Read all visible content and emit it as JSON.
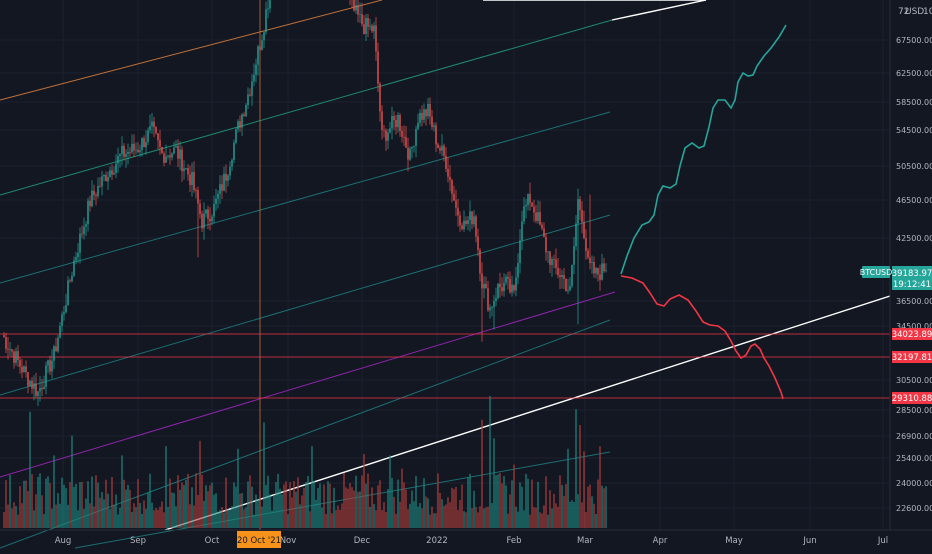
{
  "chart_data": {
    "type": "candlestick",
    "symbol": "BTCUSD",
    "currency": "USD",
    "ylim": [
      21000,
      72000
    ],
    "colors": {
      "background": "#131722",
      "up": "#26a69a",
      "down": "#ef5350",
      "up_volume": "#1f8a80",
      "down_volume": "#b23f3c",
      "price_badge": "#26a69a",
      "level_badge": "#f23645",
      "crosshair_badge": "#f7931a",
      "projection_up": "#26a69a",
      "projection_down": "#f23645",
      "trendline": "#ffffff",
      "channel_outer": "#c2733a",
      "channel_mid": "#1e8a6e",
      "channel_inner": "#1b6e72",
      "channel_purple": "#8e24aa",
      "level_line": "#f23645",
      "axis_text": "#b2b5be"
    },
    "price_axis_ticks": [
      "67500.00",
      "62500.00",
      "58500.00",
      "54500.00",
      "50500.00",
      "46500.00",
      "42500.00",
      "36500.00",
      "34500.00",
      "30500.00",
      "28500.00",
      "26900.00",
      "25400.00",
      "24000.00",
      "22600.00"
    ],
    "time_axis_labels": [
      "Aug",
      "Sep",
      "Oct",
      "Nov",
      "Dec",
      "2022",
      "Feb",
      "Mar",
      "Apr",
      "May",
      "Jun",
      "Jul"
    ],
    "crosshair_date": "20 Oct '21",
    "current_price": "39183.97",
    "countdown": "19:12:41",
    "levels": [
      {
        "label": "34023.89",
        "value": 34023.89
      },
      {
        "label": "32197.81",
        "value": 32197.81
      },
      {
        "label": "29310.88",
        "value": 29310.88
      }
    ],
    "top_labels": {
      "currency": "USD",
      "left_digits": "72",
      "right_digits": "10"
    },
    "series": {
      "anchors": [
        [
          0,
          34000
        ],
        [
          12,
          31000
        ],
        [
          18,
          29700
        ],
        [
          26,
          32500
        ],
        [
          36,
          39500
        ],
        [
          44,
          44000
        ],
        [
          52,
          46000
        ],
        [
          60,
          47500
        ],
        [
          68,
          48000
        ],
        [
          75,
          49300
        ],
        [
          80,
          47500
        ],
        [
          87,
          47800
        ],
        [
          95,
          45500
        ],
        [
          100,
          42500
        ],
        [
          106,
          43500
        ],
        [
          112,
          46000
        ],
        [
          118,
          49500
        ],
        [
          124,
          52500
        ],
        [
          130,
          56500
        ],
        [
          136,
          61500
        ],
        [
          140,
          64800
        ],
        [
          146,
          62000
        ],
        [
          151,
          62000
        ],
        [
          156,
          63300
        ],
        [
          160,
          66000
        ],
        [
          164,
          64200
        ],
        [
          168,
          63500
        ],
        [
          172,
          59800
        ],
        [
          176,
          58200
        ],
        [
          181,
          57100
        ],
        [
          186,
          56800
        ],
        [
          190,
          48800
        ],
        [
          194,
          49500
        ],
        [
          198,
          50200
        ],
        [
          204,
          47300
        ],
        [
          208,
          50300
        ],
        [
          213,
          50700
        ],
        [
          218,
          48200
        ],
        [
          222,
          47000
        ],
        [
          227,
          43500
        ],
        [
          231,
          42200
        ],
        [
          236,
          43000
        ],
        [
          240,
          38000
        ],
        [
          244,
          36000
        ],
        [
          248,
          37500
        ],
        [
          252,
          37800
        ],
        [
          256,
          36900
        ],
        [
          260,
          43000
        ],
        [
          264,
          44200
        ],
        [
          268,
          42600
        ],
        [
          272,
          40500
        ],
        [
          276,
          39000
        ],
        [
          280,
          38400
        ],
        [
          284,
          37200
        ],
        [
          288,
          44000
        ],
        [
          290,
          43000
        ],
        [
          293,
          39200
        ],
        [
          297,
          38500
        ],
        [
          300,
          38800
        ],
        [
          302,
          39184
        ]
      ],
      "big_wicks": [
        [
          98,
          39800
        ],
        [
          240,
          33500
        ],
        [
          246,
          34400
        ],
        [
          288,
          34800
        ],
        [
          294,
          44500
        ]
      ]
    },
    "volume": {
      "spikes": [
        [
          14,
          0.88
        ],
        [
          26,
          0.55
        ],
        [
          35,
          0.7
        ],
        [
          60,
          0.55
        ],
        [
          82,
          0.62
        ],
        [
          99,
          0.66
        ],
        [
          118,
          0.6
        ],
        [
          131,
          0.8
        ],
        [
          155,
          0.62
        ],
        [
          181,
          0.56
        ],
        [
          194,
          0.55
        ],
        [
          200,
          0.45
        ],
        [
          240,
          0.82
        ],
        [
          244,
          1.0
        ],
        [
          246,
          0.68
        ],
        [
          256,
          0.48
        ],
        [
          283,
          0.6
        ],
        [
          287,
          0.9
        ],
        [
          289,
          0.78
        ],
        [
          291,
          0.58
        ],
        [
          299,
          0.62
        ]
      ]
    },
    "projection_up": [
      [
        621,
        274
      ],
      [
        627,
        256
      ],
      [
        634,
        238
      ],
      [
        642,
        225
      ],
      [
        649,
        222
      ],
      [
        654,
        215
      ],
      [
        658,
        195
      ],
      [
        663,
        186
      ],
      [
        670,
        188
      ],
      [
        676,
        184
      ],
      [
        680,
        166
      ],
      [
        685,
        148
      ],
      [
        692,
        143
      ],
      [
        699,
        148
      ],
      [
        704,
        146
      ],
      [
        709,
        127
      ],
      [
        713,
        108
      ],
      [
        718,
        100
      ],
      [
        725,
        100
      ],
      [
        731,
        108
      ],
      [
        735,
        100
      ],
      [
        738,
        82
      ],
      [
        743,
        73
      ],
      [
        748,
        76
      ],
      [
        753,
        75
      ],
      [
        757,
        66
      ],
      [
        764,
        56
      ],
      [
        771,
        48
      ],
      [
        779,
        37
      ],
      [
        786,
        25
      ]
    ],
    "projection_down": [
      [
        621,
        276
      ],
      [
        632,
        278
      ],
      [
        643,
        283
      ],
      [
        650,
        293
      ],
      [
        657,
        304
      ],
      [
        664,
        306
      ],
      [
        670,
        299
      ],
      [
        679,
        295
      ],
      [
        688,
        300
      ],
      [
        696,
        311
      ],
      [
        703,
        322
      ],
      [
        710,
        325
      ],
      [
        718,
        326
      ],
      [
        725,
        331
      ],
      [
        731,
        341
      ],
      [
        736,
        351
      ],
      [
        741,
        358
      ],
      [
        746,
        355
      ],
      [
        751,
        346
      ],
      [
        755,
        344
      ],
      [
        760,
        349
      ],
      [
        764,
        358
      ],
      [
        769,
        366
      ],
      [
        775,
        378
      ],
      [
        781,
        392
      ],
      [
        783,
        399
      ]
    ]
  }
}
